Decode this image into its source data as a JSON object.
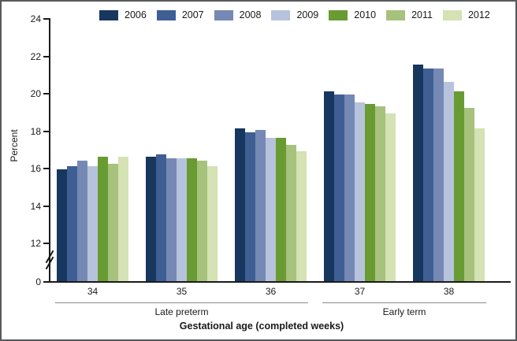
{
  "chart_data": {
    "type": "bar",
    "xlabel": "Gestational age (completed weeks)",
    "ylabel": "Percent",
    "categories": [
      "34",
      "35",
      "36",
      "37",
      "38"
    ],
    "category_sections": [
      {
        "label": "Late preterm",
        "from": 0,
        "to": 2
      },
      {
        "label": "Early term",
        "from": 3,
        "to": 4
      }
    ],
    "series": [
      {
        "name": "2006",
        "color": "#17375e",
        "values": [
          15.9,
          16.6,
          18.1,
          20.1,
          21.5
        ]
      },
      {
        "name": "2007",
        "color": "#3f5f94",
        "values": [
          16.1,
          16.7,
          17.9,
          19.9,
          21.3
        ]
      },
      {
        "name": "2008",
        "color": "#7589b4",
        "values": [
          16.4,
          16.5,
          18.0,
          19.9,
          21.3
        ]
      },
      {
        "name": "2009",
        "color": "#b7c3dc",
        "values": [
          16.1,
          16.5,
          17.6,
          19.5,
          20.6
        ]
      },
      {
        "name": "2010",
        "color": "#689b32",
        "values": [
          16.6,
          16.5,
          17.6,
          19.4,
          20.1
        ]
      },
      {
        "name": "2011",
        "color": "#a6c27c",
        "values": [
          16.2,
          16.4,
          17.2,
          19.3,
          19.2
        ]
      },
      {
        "name": "2012",
        "color": "#d4e2b4",
        "values": [
          16.6,
          16.1,
          16.9,
          18.9,
          18.1
        ]
      }
    ],
    "y_ticks": [
      0,
      12,
      14,
      16,
      18,
      20,
      22,
      24
    ],
    "ylim": [
      0,
      24
    ],
    "axis_break_between": [
      0,
      12
    ],
    "legend_position": "top",
    "grid": false
  }
}
